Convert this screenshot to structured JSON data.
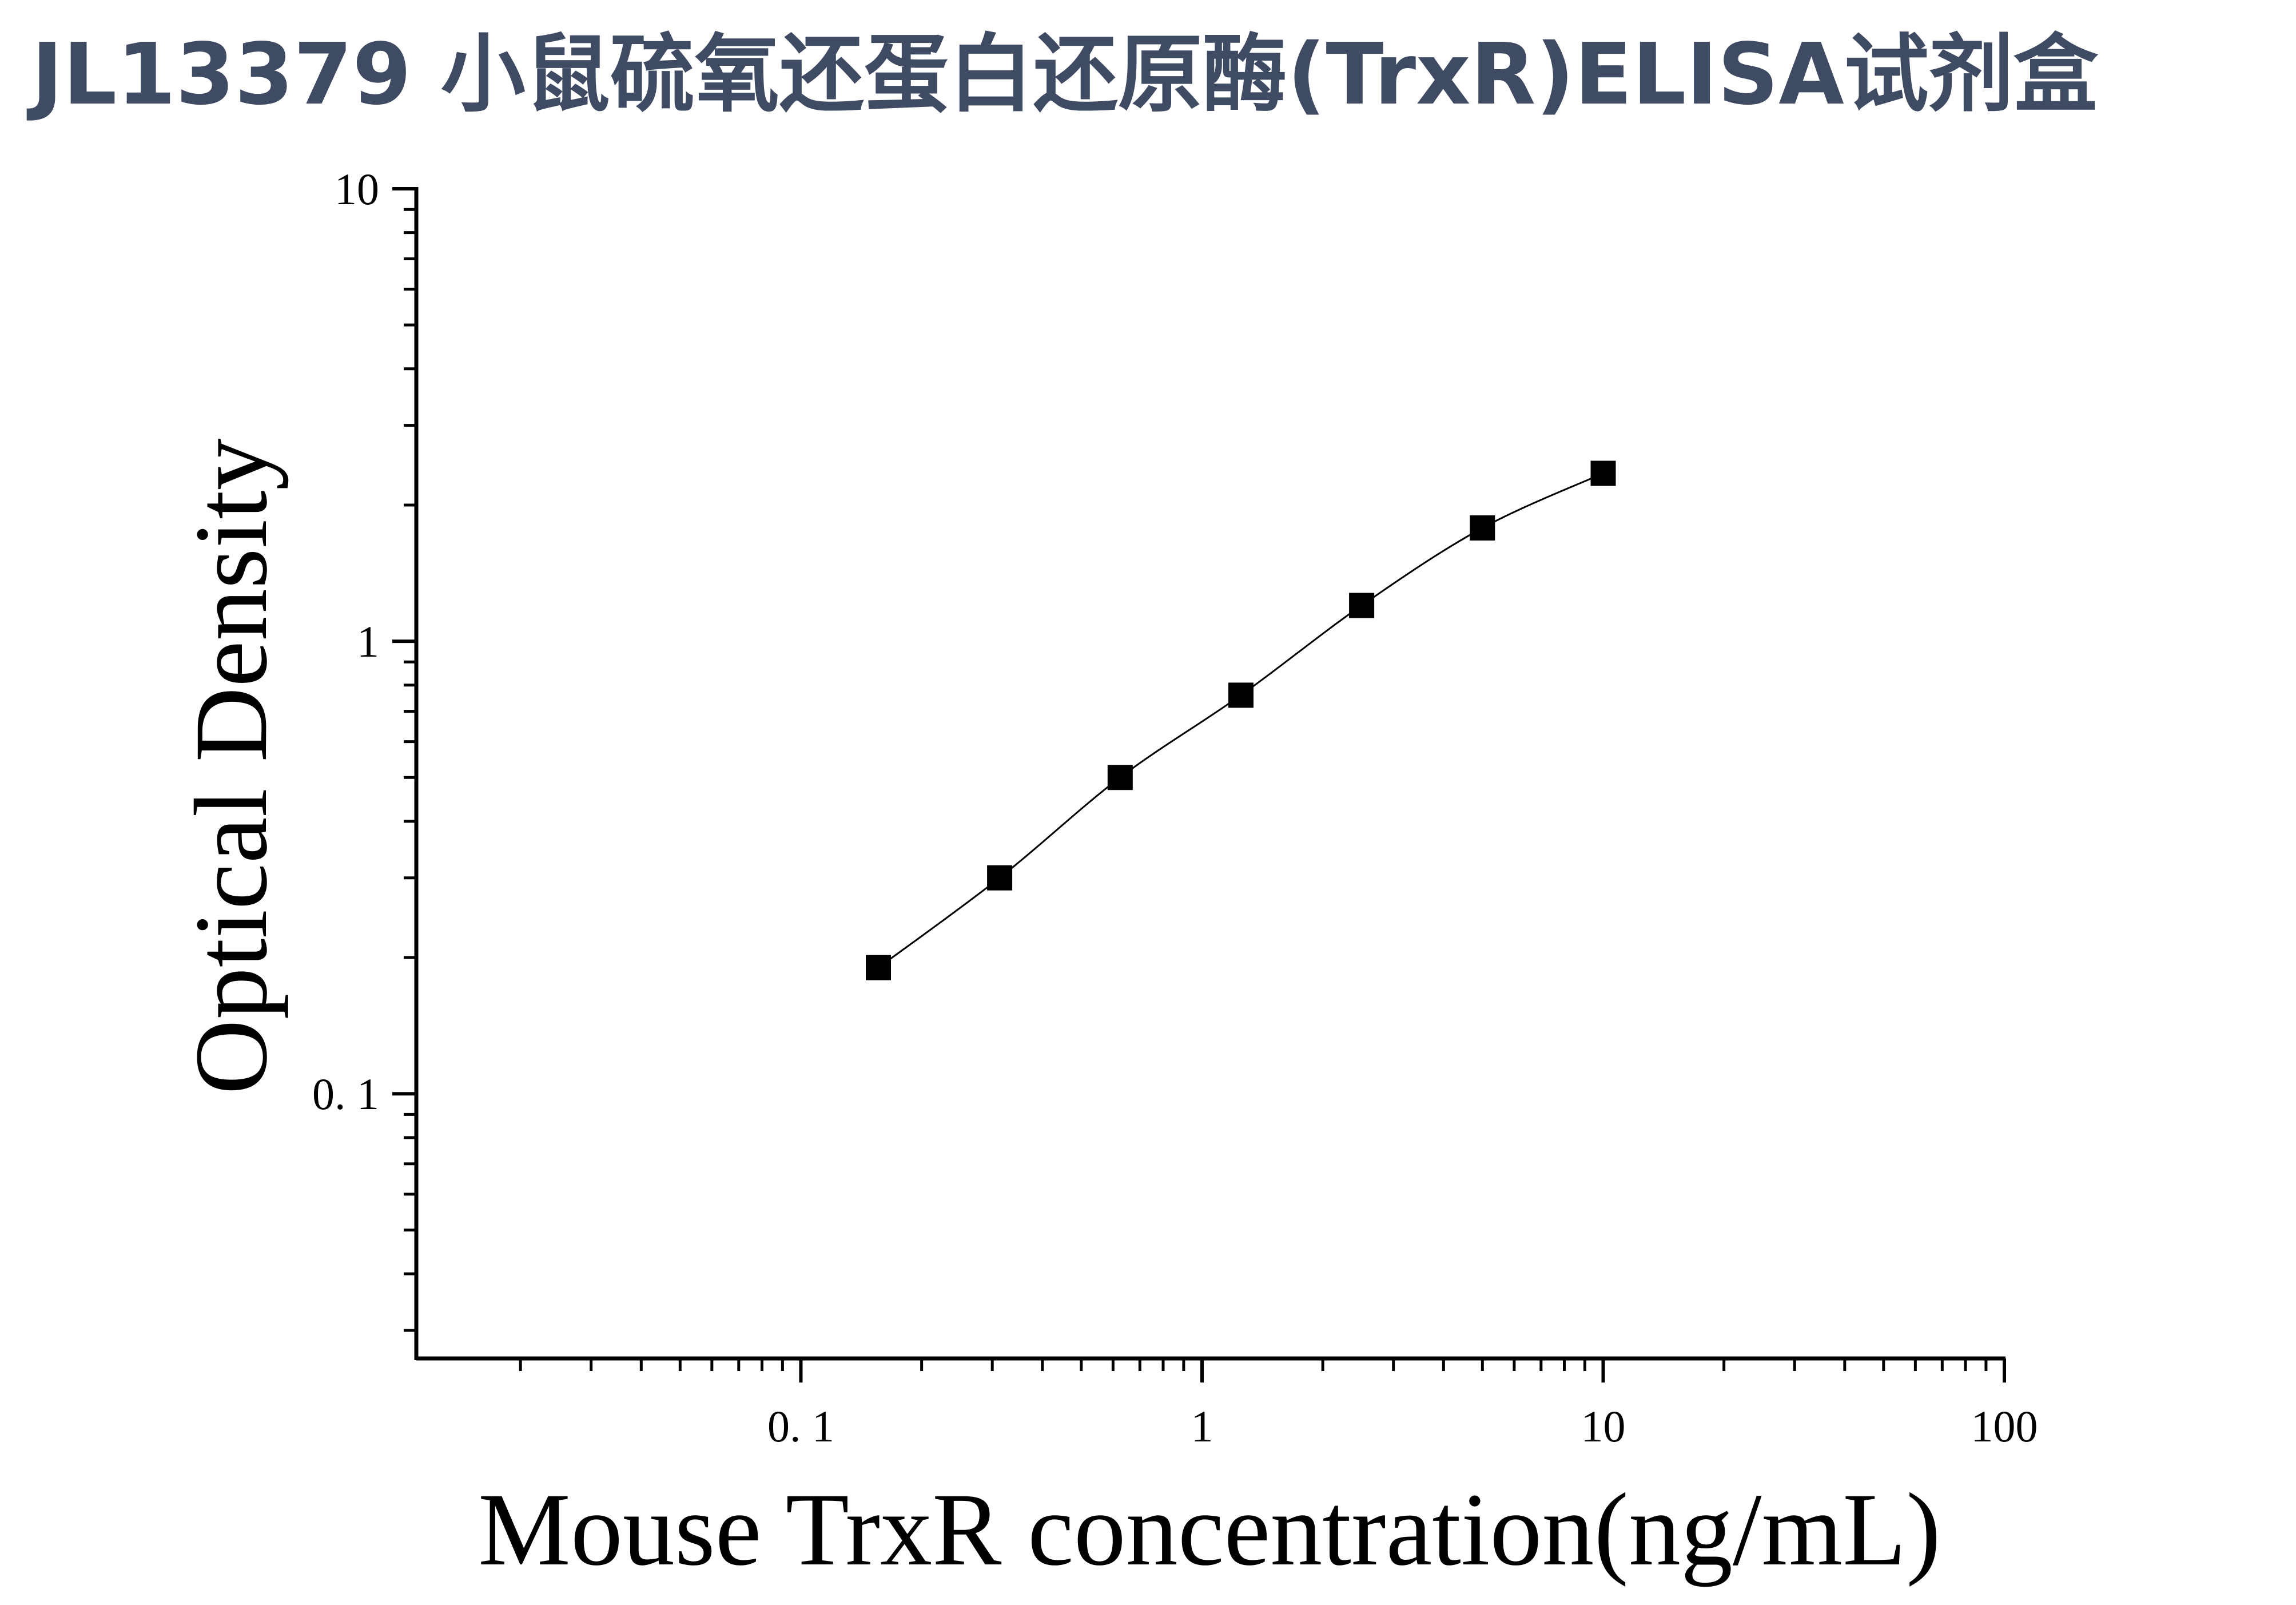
{
  "page": {
    "title": "JL13379 小鼠硫氧还蛋白还原酶(TrxR)ELISA试剂盒"
  },
  "colors": {
    "title": "#3f4a63",
    "axis": "#000000",
    "marker": "#000000",
    "curve": "#000000"
  },
  "chart_data": {
    "type": "scatter",
    "title": "JL13379 小鼠硫氧还蛋白还原酶(TrxR)ELISA试剂盒",
    "xlabel": "Mouse TrxR concentration(ng/mL)",
    "ylabel": "Optical Density",
    "x_scale": "log",
    "y_scale": "log",
    "xlim": [
      0.011,
      100
    ],
    "ylim": [
      0.026,
      10
    ],
    "x_ticks": [
      {
        "value": 0.1,
        "label": "0. 1"
      },
      {
        "value": 1,
        "label": "1"
      },
      {
        "value": 10,
        "label": "10"
      },
      {
        "value": 100,
        "label": "100"
      }
    ],
    "y_ticks": [
      {
        "value": 0.1,
        "label": "0. 1"
      },
      {
        "value": 1,
        "label": "1"
      },
      {
        "value": 10,
        "label": "10"
      }
    ],
    "grid": false,
    "legend": "none",
    "marker": "square",
    "fit_curve": true,
    "series": [
      {
        "x": [
          0.156,
          0.313,
          0.625,
          1.25,
          2.5,
          5,
          10
        ],
        "y": [
          0.19,
          0.3,
          0.5,
          0.76,
          1.2,
          1.78,
          2.35
        ]
      }
    ]
  }
}
